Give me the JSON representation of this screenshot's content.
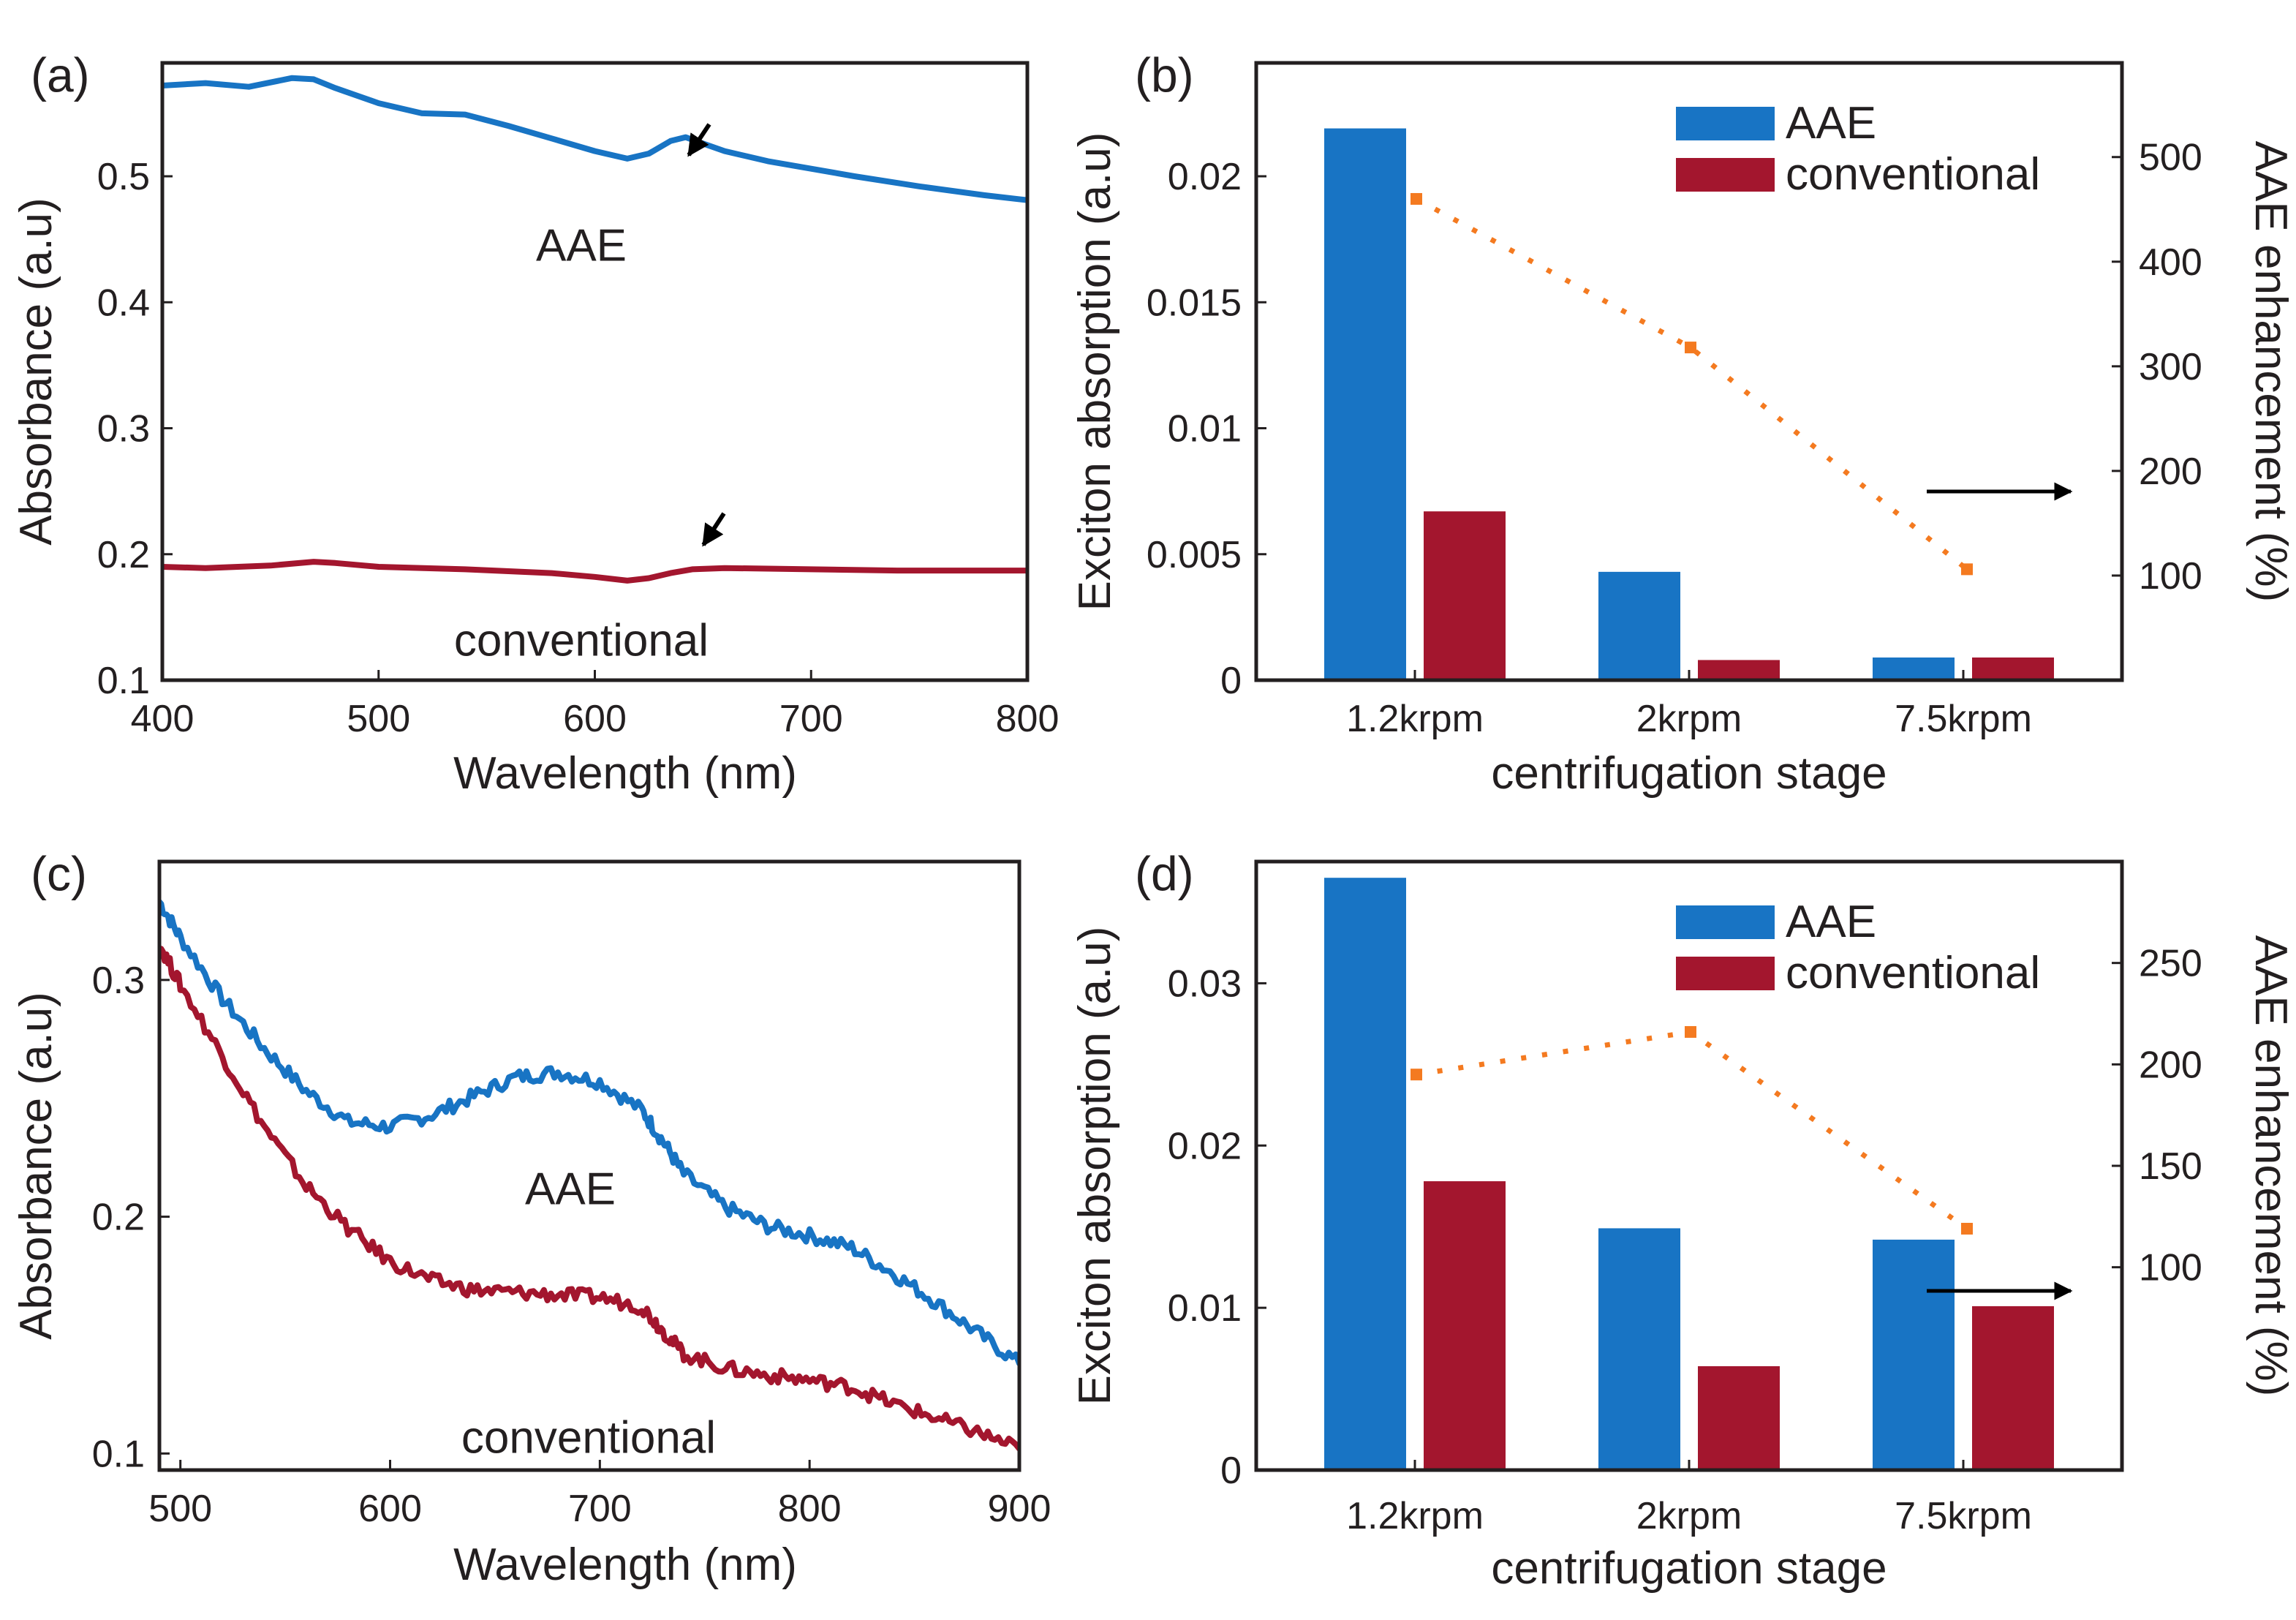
{
  "colors": {
    "aae": "#1874c4",
    "conventional": "#a3162e",
    "enhancement": "#f47a20",
    "axis": "#231f20"
  },
  "chart_data": [
    {
      "panel": "(a)",
      "type": "line",
      "xlabel": "Wavelength (nm)",
      "ylabel": "Absorbance (a.u)",
      "xlim": [
        400,
        800
      ],
      "ylim": [
        0.1,
        0.59
      ],
      "xticks": [
        400,
        500,
        600,
        700,
        800
      ],
      "yticks": [
        0.1,
        0.2,
        0.3,
        0.4,
        0.5
      ],
      "x_tick_labels": [
        "400",
        "500",
        "600",
        "700",
        "800"
      ],
      "y_tick_labels": [
        "0.1",
        "0.2",
        "0.3",
        "0.4",
        "0.5"
      ],
      "series": [
        {
          "name": "AAE",
          "label": "AAE",
          "x": [
            400,
            420,
            440,
            460,
            470,
            480,
            500,
            520,
            540,
            560,
            580,
            600,
            615,
            625,
            635,
            642,
            650,
            660,
            680,
            700,
            720,
            750,
            780,
            800
          ],
          "y": [
            0.572,
            0.574,
            0.571,
            0.578,
            0.577,
            0.57,
            0.558,
            0.55,
            0.549,
            0.54,
            0.53,
            0.52,
            0.514,
            0.518,
            0.528,
            0.531,
            0.526,
            0.52,
            0.512,
            0.506,
            0.5,
            0.492,
            0.485,
            0.481
          ]
        },
        {
          "name": "conventional",
          "label": "conventional",
          "x": [
            400,
            420,
            450,
            470,
            480,
            500,
            540,
            580,
            600,
            615,
            625,
            635,
            645,
            660,
            700,
            740,
            800
          ],
          "y": [
            0.19,
            0.189,
            0.191,
            0.194,
            0.193,
            0.19,
            0.188,
            0.185,
            0.182,
            0.179,
            0.181,
            0.185,
            0.188,
            0.189,
            0.188,
            0.187,
            0.187
          ]
        }
      ],
      "annotations": [
        {
          "text": "AAE arrow",
          "x": 640,
          "y": 0.535
        },
        {
          "text": "conventional arrow",
          "x": 645,
          "y": 0.192
        }
      ]
    },
    {
      "panel": "(b)",
      "type": "bar",
      "xlabel": "centrifugation stage",
      "ylabel": "Exciton absorption (a.u)",
      "y2label": "AAE enhancement (%)",
      "categories": [
        "1.2krpm",
        "2krpm",
        "7.5krpm"
      ],
      "ylim": [
        0,
        0.0245
      ],
      "y2lim": [
        0,
        590
      ],
      "yticks": [
        0,
        0.005,
        0.01,
        0.015,
        0.02
      ],
      "y_tick_labels": [
        "0",
        "0.005",
        "0.01",
        "0.015",
        "0.02"
      ],
      "y2ticks": [
        100,
        200,
        300,
        400,
        500
      ],
      "y2_tick_labels": [
        "100",
        "200",
        "300",
        "400",
        "500"
      ],
      "legend": [
        "AAE",
        "conventional"
      ],
      "series": [
        {
          "name": "AAE",
          "values": [
            0.0219,
            0.0043,
            0.0009
          ]
        },
        {
          "name": "conventional",
          "values": [
            0.0067,
            0.0008,
            0.0009
          ]
        },
        {
          "name": "AAE enhancement",
          "axis": "right",
          "values": [
            460,
            318,
            106
          ]
        }
      ]
    },
    {
      "panel": "(c)",
      "type": "line",
      "xlabel": "Wavelength (nm)",
      "ylabel": "Absorbance (a.u)",
      "xlim": [
        490,
        900
      ],
      "ylim": [
        0.093,
        0.35
      ],
      "xticks": [
        500,
        600,
        700,
        800,
        900
      ],
      "yticks": [
        0.1,
        0.2,
        0.3
      ],
      "x_tick_labels": [
        "500",
        "600",
        "700",
        "800",
        "900"
      ],
      "y_tick_labels": [
        "0.1",
        "0.2",
        "0.3"
      ],
      "series": [
        {
          "name": "AAE",
          "label": "AAE",
          "x": [
            490,
            500,
            520,
            540,
            560,
            580,
            600,
            620,
            640,
            660,
            680,
            700,
            720,
            730,
            740,
            760,
            780,
            800,
            820,
            840,
            860,
            880,
            900
          ],
          "y": [
            0.333,
            0.318,
            0.292,
            0.271,
            0.253,
            0.24,
            0.238,
            0.243,
            0.251,
            0.259,
            0.261,
            0.257,
            0.245,
            0.232,
            0.218,
            0.204,
            0.196,
            0.192,
            0.187,
            0.176,
            0.164,
            0.151,
            0.138
          ]
        },
        {
          "name": "conventional",
          "label": "conventional",
          "x": [
            490,
            500,
            520,
            540,
            560,
            580,
            600,
            620,
            640,
            660,
            680,
            700,
            720,
            730,
            740,
            760,
            780,
            800,
            820,
            840,
            860,
            880,
            900
          ],
          "y": [
            0.315,
            0.298,
            0.268,
            0.238,
            0.213,
            0.195,
            0.181,
            0.173,
            0.169,
            0.168,
            0.167,
            0.166,
            0.162,
            0.152,
            0.142,
            0.136,
            0.133,
            0.131,
            0.128,
            0.121,
            0.115,
            0.109,
            0.102
          ]
        }
      ]
    },
    {
      "panel": "(d)",
      "type": "bar",
      "xlabel": "centrifugation stage",
      "ylabel": "Exciton absorption (a.u)",
      "y2label": "AAE enhancement (%)",
      "categories": [
        "1.2krpm",
        "2krpm",
        "7.5krpm"
      ],
      "ylim": [
        0,
        0.0375
      ],
      "y2lim": [
        0,
        300
      ],
      "yticks": [
        0,
        0.01,
        0.02,
        0.03
      ],
      "y_tick_labels": [
        "0",
        "0.01",
        "0.02",
        "0.03"
      ],
      "y2ticks": [
        100,
        150,
        200,
        250
      ],
      "y2_tick_labels": [
        "100",
        "150",
        "200",
        "250"
      ],
      "legend": [
        "AAE",
        "conventional"
      ],
      "series": [
        {
          "name": "AAE",
          "values": [
            0.0365,
            0.0149,
            0.0142
          ]
        },
        {
          "name": "conventional",
          "values": [
            0.0178,
            0.0064,
            0.0101
          ]
        },
        {
          "name": "AAE enhancement",
          "axis": "right",
          "values": [
            195,
            216,
            119
          ]
        }
      ]
    }
  ]
}
